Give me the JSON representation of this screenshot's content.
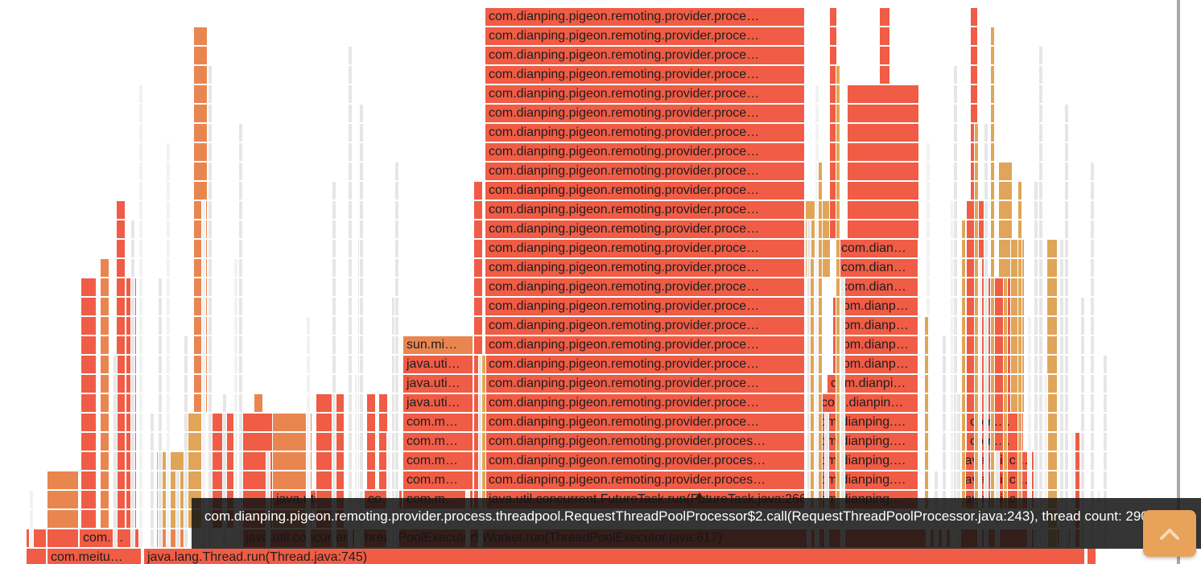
{
  "colors": {
    "red": "#f05c45",
    "orange_red": "#ef7a55",
    "orange": "#e98650",
    "amber": "#e0a558",
    "grey": "#e6e6e6",
    "tooltip_bg": "#141414",
    "backtop_bg": "#e8a25a"
  },
  "frames": {
    "thread_run": "java.lang.Thread.run(Thread.java:745)",
    "meituan": "com.meitu…",
    "com_short": "com.…",
    "executor_worker": "java.util.concurrent.ThreadPoolExecutor$Worker.run(ThreadPoolExecutor.java:617)",
    "future_task": "java.util.concurrent.FutureTask.run(FutureTask.java:266)",
    "java_util_short": "java.util…",
    "co_short": "co…",
    "com_m_short": "com.m…",
    "java_uti_short": "java.uti…",
    "sun_mi": "sun.mi…",
    "provider_proces": "com.dianping.pigeon.remoting.provider.proces…",
    "provider_proce": "com.dianping.pigeon.remoting.provider.proce…",
    "dianping_dots": "com.dianping.…",
    "dianpin": "com.dianpin…",
    "dianpi": "com.dianpi…",
    "dianp": "com.dianp…",
    "dian": "com.dian…",
    "java_util_c": "java.util.c…",
    "com_dots": "com.…"
  },
  "tooltip": {
    "text": "com.dianping.pigeon.remoting.provider.process.threadpool.RequestThreadPoolProcessor$2.call(RequestThreadPoolProcessor.java:243), thread count: 290"
  },
  "back_to_top": {
    "icon": "chevron-up-icon"
  }
}
